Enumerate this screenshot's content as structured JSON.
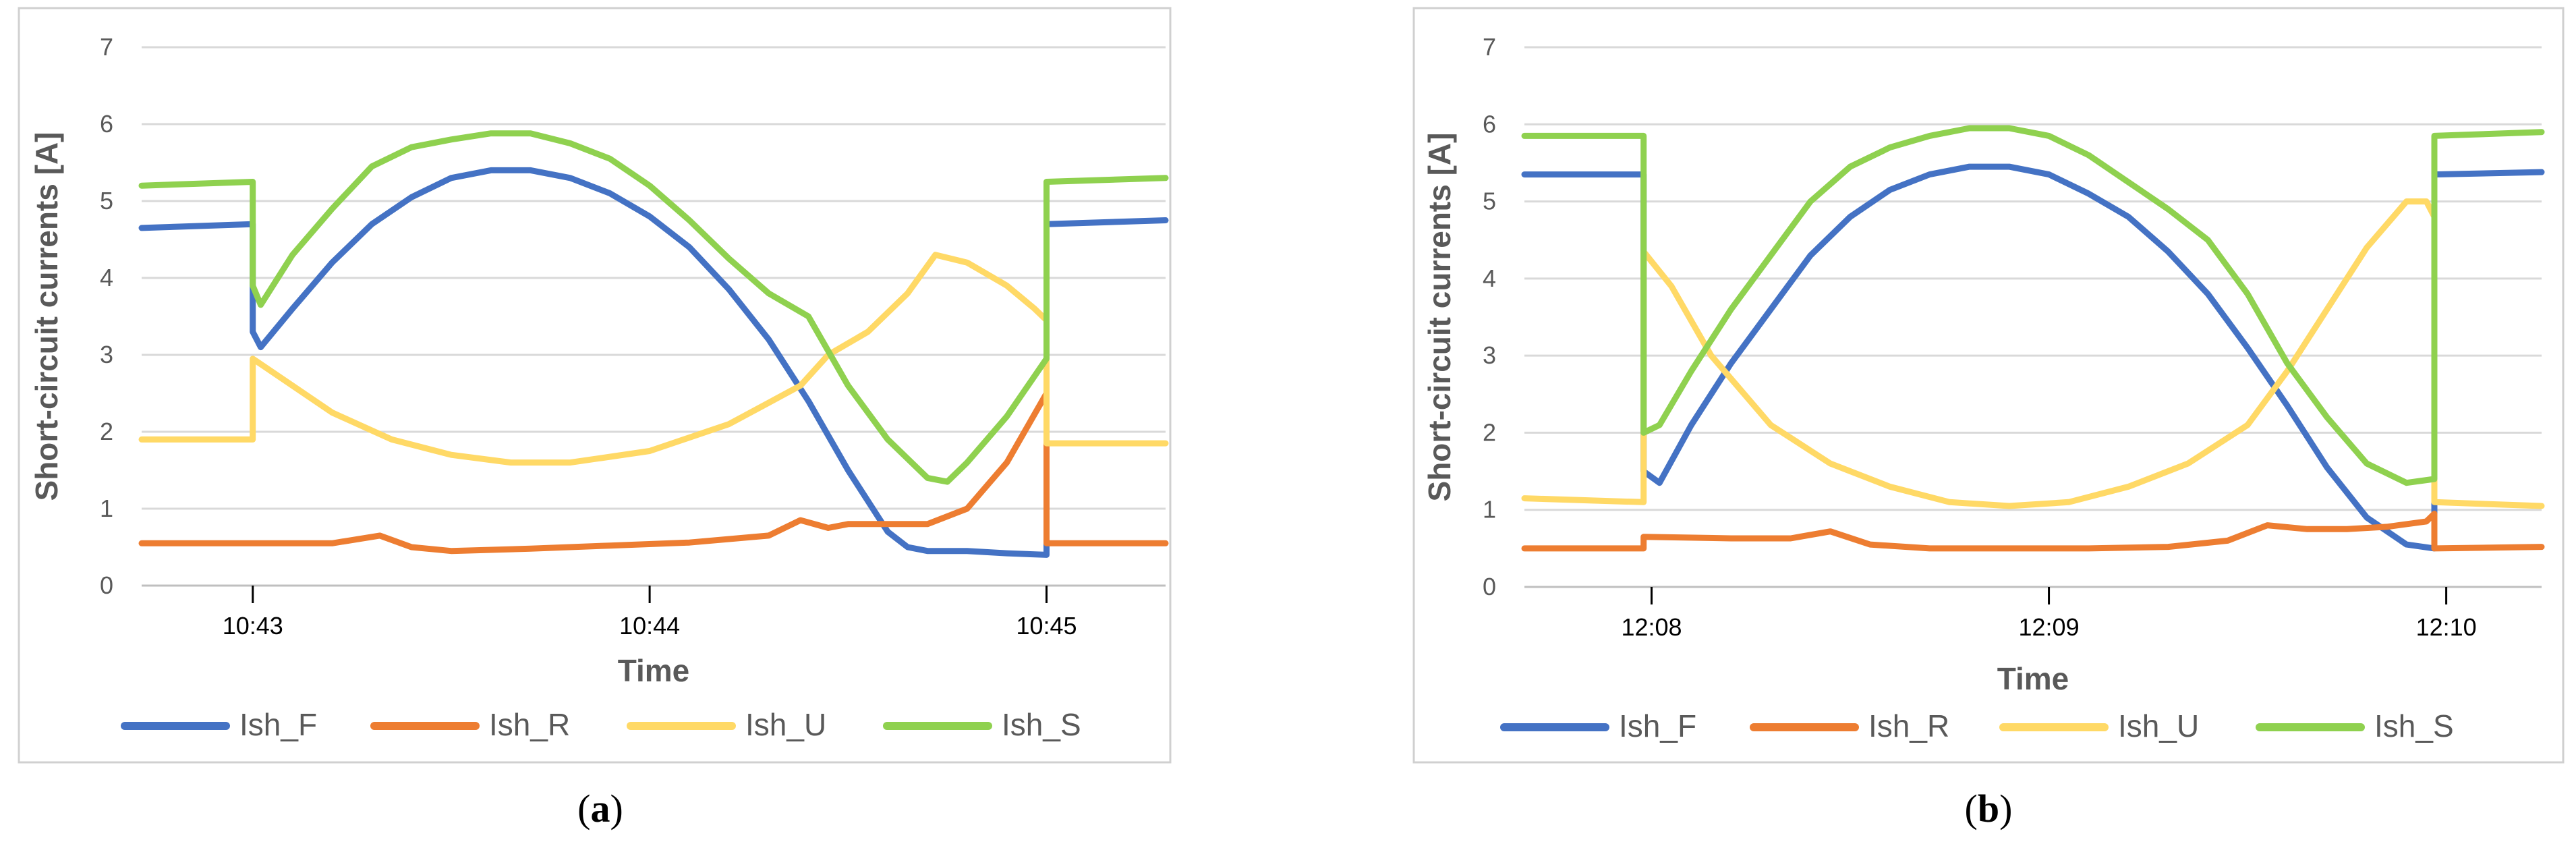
{
  "chart_data": [
    {
      "type": "line",
      "caption": "a",
      "xlabel": "Time",
      "ylabel": "Short-circuit currents [A]",
      "ylim": [
        0,
        7
      ],
      "yticks": [
        "0",
        "1",
        "2",
        "3",
        "4",
        "5",
        "6",
        "7"
      ],
      "xlim_minutes": [
        -0.28,
        2.3
      ],
      "xticks": [
        {
          "value": 0,
          "label": "10:43"
        },
        {
          "value": 1,
          "label": "10:44"
        },
        {
          "value": 2,
          "label": "10:45"
        }
      ],
      "series": [
        {
          "name": "Ish_F",
          "color": "#4472C4",
          "x": [
            -0.28,
            0.0,
            0.0,
            0.02,
            0.1,
            0.2,
            0.3,
            0.4,
            0.5,
            0.6,
            0.7,
            0.8,
            0.9,
            1.0,
            1.1,
            1.2,
            1.3,
            1.4,
            1.5,
            1.6,
            1.65,
            1.7,
            1.8,
            1.9,
            2.0,
            2.0,
            2.3
          ],
          "y": [
            4.65,
            4.7,
            3.3,
            3.1,
            3.6,
            4.2,
            4.7,
            5.05,
            5.3,
            5.4,
            5.4,
            5.3,
            5.1,
            4.8,
            4.4,
            3.85,
            3.2,
            2.4,
            1.5,
            0.7,
            0.5,
            0.45,
            0.45,
            0.42,
            0.4,
            4.7,
            4.75
          ]
        },
        {
          "name": "Ish_R",
          "color": "#ED7D31",
          "x": [
            -0.28,
            0.0,
            0.2,
            0.32,
            0.4,
            0.5,
            0.7,
            0.9,
            1.1,
            1.3,
            1.38,
            1.45,
            1.5,
            1.6,
            1.7,
            1.8,
            1.9,
            2.0,
            2.0,
            2.3
          ],
          "y": [
            0.55,
            0.55,
            0.55,
            0.65,
            0.5,
            0.45,
            0.48,
            0.52,
            0.56,
            0.65,
            0.85,
            0.75,
            0.8,
            0.8,
            0.8,
            1.0,
            1.6,
            2.5,
            0.55,
            0.55
          ]
        },
        {
          "name": "Ish_U",
          "color": "#FFD966",
          "x": [
            -0.28,
            0.0,
            0.0,
            0.1,
            0.2,
            0.35,
            0.5,
            0.65,
            0.8,
            1.0,
            1.2,
            1.38,
            1.45,
            1.55,
            1.65,
            1.72,
            1.8,
            1.9,
            1.97,
            2.0,
            2.0,
            2.3
          ],
          "y": [
            1.9,
            1.9,
            2.95,
            2.6,
            2.25,
            1.9,
            1.7,
            1.6,
            1.6,
            1.75,
            2.1,
            2.6,
            3.0,
            3.3,
            3.8,
            4.3,
            4.2,
            3.9,
            3.6,
            3.45,
            1.85,
            1.85
          ]
        },
        {
          "name": "Ish_S",
          "color": "#8FD14F",
          "x": [
            -0.28,
            0.0,
            0.0,
            0.02,
            0.1,
            0.2,
            0.3,
            0.4,
            0.5,
            0.6,
            0.7,
            0.8,
            0.9,
            1.0,
            1.1,
            1.2,
            1.3,
            1.4,
            1.5,
            1.6,
            1.7,
            1.75,
            1.8,
            1.9,
            2.0,
            2.0,
            2.3
          ],
          "y": [
            5.2,
            5.25,
            3.9,
            3.65,
            4.3,
            4.9,
            5.45,
            5.7,
            5.8,
            5.88,
            5.88,
            5.75,
            5.55,
            5.2,
            4.75,
            4.25,
            3.8,
            3.5,
            2.6,
            1.9,
            1.4,
            1.35,
            1.6,
            2.2,
            2.95,
            5.25,
            5.3
          ]
        }
      ]
    },
    {
      "type": "line",
      "caption": "b",
      "xlabel": "Time",
      "ylabel": "Short-circuit currents [A]",
      "ylim": [
        0,
        7
      ],
      "yticks": [
        "0",
        "1",
        "2",
        "3",
        "4",
        "5",
        "6",
        "7"
      ],
      "xlim_minutes": [
        -0.32,
        2.24
      ],
      "xticks": [
        {
          "value": 0,
          "label": "12:08"
        },
        {
          "value": 1,
          "label": "12:09"
        },
        {
          "value": 2,
          "label": "12:10"
        }
      ],
      "series": [
        {
          "name": "Ish_F",
          "color": "#4472C4",
          "x": [
            -0.32,
            -0.02,
            -0.02,
            0.02,
            0.1,
            0.2,
            0.3,
            0.4,
            0.5,
            0.6,
            0.7,
            0.8,
            0.9,
            1.0,
            1.1,
            1.2,
            1.3,
            1.4,
            1.5,
            1.6,
            1.7,
            1.8,
            1.9,
            1.97,
            1.97,
            2.24
          ],
          "y": [
            5.35,
            5.35,
            1.5,
            1.35,
            2.1,
            2.9,
            3.6,
            4.3,
            4.8,
            5.15,
            5.35,
            5.45,
            5.45,
            5.35,
            5.1,
            4.8,
            4.35,
            3.8,
            3.1,
            2.35,
            1.55,
            0.9,
            0.55,
            0.5,
            5.35,
            5.38
          ]
        },
        {
          "name": "Ish_R",
          "color": "#ED7D31",
          "x": [
            -0.32,
            -0.02,
            -0.02,
            0.2,
            0.35,
            0.45,
            0.55,
            0.7,
            0.9,
            1.1,
            1.3,
            1.45,
            1.55,
            1.65,
            1.75,
            1.85,
            1.95,
            1.97,
            1.97,
            2.24
          ],
          "y": [
            0.5,
            0.5,
            0.65,
            0.63,
            0.63,
            0.72,
            0.55,
            0.5,
            0.5,
            0.5,
            0.52,
            0.6,
            0.8,
            0.75,
            0.75,
            0.78,
            0.85,
            0.95,
            0.5,
            0.52
          ]
        },
        {
          "name": "Ish_U",
          "color": "#FFD966",
          "x": [
            -0.32,
            -0.02,
            -0.02,
            0.05,
            0.15,
            0.3,
            0.45,
            0.6,
            0.75,
            0.9,
            1.05,
            1.2,
            1.35,
            1.5,
            1.6,
            1.7,
            1.8,
            1.9,
            1.95,
            1.97,
            1.97,
            2.24
          ],
          "y": [
            1.15,
            1.1,
            4.35,
            3.9,
            3.0,
            2.1,
            1.6,
            1.3,
            1.1,
            1.05,
            1.1,
            1.3,
            1.6,
            2.1,
            2.8,
            3.6,
            4.4,
            5.0,
            5.0,
            4.8,
            1.1,
            1.05
          ]
        },
        {
          "name": "Ish_S",
          "color": "#8FD14F",
          "x": [
            -0.32,
            -0.02,
            -0.02,
            0.02,
            0.1,
            0.2,
            0.3,
            0.4,
            0.5,
            0.6,
            0.7,
            0.8,
            0.9,
            1.0,
            1.1,
            1.2,
            1.3,
            1.4,
            1.5,
            1.6,
            1.7,
            1.8,
            1.9,
            1.97,
            1.97,
            2.24
          ],
          "y": [
            5.85,
            5.85,
            2.0,
            2.1,
            2.8,
            3.6,
            4.3,
            5.0,
            5.45,
            5.7,
            5.85,
            5.95,
            5.95,
            5.85,
            5.6,
            5.25,
            4.9,
            4.5,
            3.8,
            2.9,
            2.2,
            1.6,
            1.35,
            1.4,
            5.85,
            5.9
          ]
        }
      ]
    }
  ]
}
